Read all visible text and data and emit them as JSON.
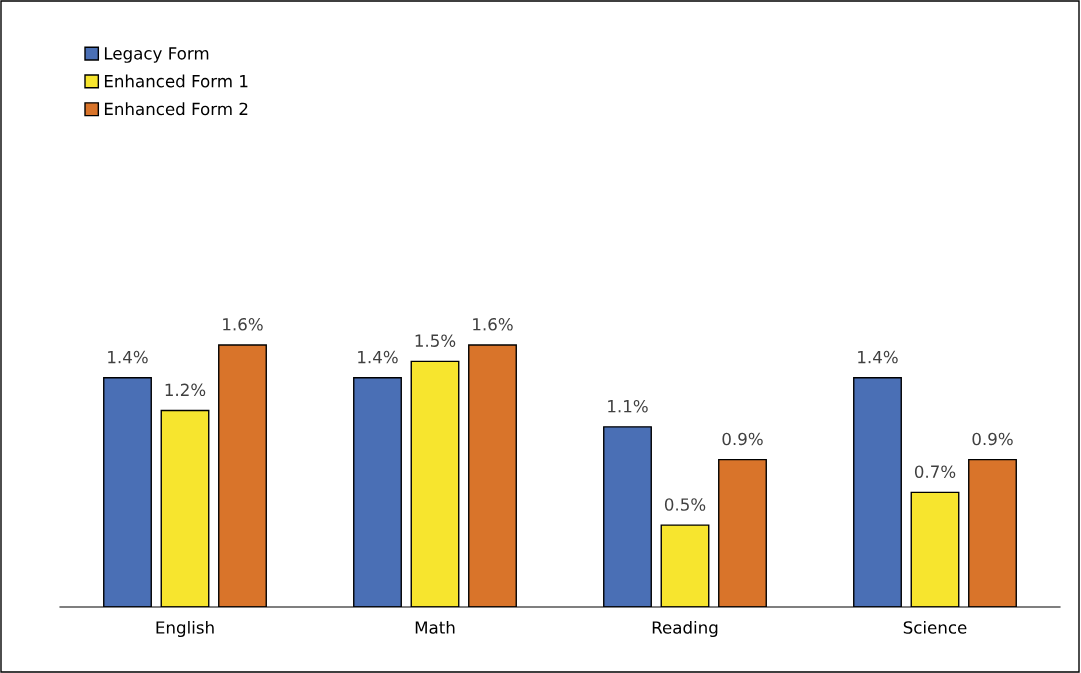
{
  "chart_data": {
    "type": "bar",
    "categories": [
      "English",
      "Math",
      "Reading",
      "Science"
    ],
    "series": [
      {
        "name": "Legacy Form",
        "color": "#4a6fb5",
        "values": [
          1.4,
          1.4,
          1.1,
          1.4
        ],
        "value_labels": [
          "1.4%",
          "1.4%",
          "1.1%",
          "1.4%"
        ]
      },
      {
        "name": "Enhanced Form 1",
        "color": "#f7e52e",
        "values": [
          1.2,
          1.5,
          0.5,
          0.7
        ],
        "value_labels": [
          "1.2%",
          "1.5%",
          "0.5%",
          "0.7%"
        ]
      },
      {
        "name": "Enhanced Form 2",
        "color": "#d9742a",
        "values": [
          1.6,
          1.6,
          0.9,
          0.9
        ],
        "value_labels": [
          "1.6%",
          "1.6%",
          "0.9%",
          "0.9%"
        ]
      }
    ],
    "legend": "top left",
    "grid": false
  }
}
